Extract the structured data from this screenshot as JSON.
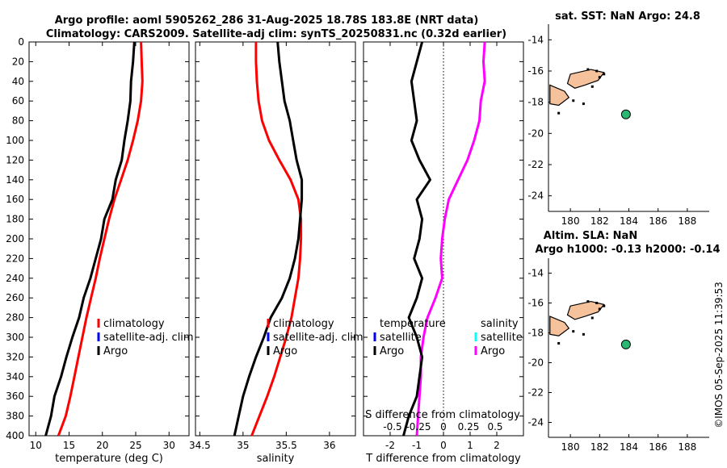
{
  "header": {
    "title_line1": "Argo profile: aoml 5905262_286 31-Aug-2025 18.78S 183.8E (NRT data)",
    "title_line2": "Climatology: CARS2009. Satellite-adj clim: synTS_20250831.nc (0.32d earlier)",
    "sst_title": "sat. SST: NaN Argo: 24.8",
    "sla_title1": "Altim. SLA: NaN",
    "sla_title2": "Argo h1000: -0.13 h2000: -0.14",
    "credit": "©IMOS 05-Sep-2025 11:39:53"
  },
  "colors": {
    "climatology": "#ff0000",
    "satellite": "#0000ff",
    "argo": "#000000",
    "sal_satellite": "#00ffff",
    "sal_argo": "#ff00ff",
    "land": "#f6c29c",
    "float": "#2ab673"
  },
  "chart_data": [
    {
      "type": "line",
      "xlabel": "temperature (deg C)",
      "xlim": [
        9,
        33
      ],
      "ylim": [
        0,
        400
      ],
      "y_reversed": true,
      "xticks": [
        10,
        15,
        20,
        25,
        30
      ],
      "yticks": [
        0,
        20,
        40,
        60,
        80,
        100,
        120,
        140,
        160,
        180,
        200,
        220,
        240,
        260,
        280,
        300,
        320,
        340,
        360,
        380,
        400
      ],
      "legend": [
        "climatology",
        "satellite-adj. clim",
        "Argo"
      ],
      "series": [
        {
          "name": "climatology",
          "points": [
            [
              25.8,
              0
            ],
            [
              25.9,
              20
            ],
            [
              26.0,
              40
            ],
            [
              25.8,
              60
            ],
            [
              25.3,
              80
            ],
            [
              24.6,
              100
            ],
            [
              23.8,
              120
            ],
            [
              22.8,
              140
            ],
            [
              21.8,
              160
            ],
            [
              21.0,
              180
            ],
            [
              20.3,
              200
            ],
            [
              19.6,
              220
            ],
            [
              19.0,
              240
            ],
            [
              18.3,
              260
            ],
            [
              17.6,
              280
            ],
            [
              17.0,
              300
            ],
            [
              16.4,
              320
            ],
            [
              15.8,
              340
            ],
            [
              15.2,
              360
            ],
            [
              14.5,
              380
            ],
            [
              13.4,
              400
            ]
          ]
        },
        {
          "name": "Argo",
          "points": [
            [
              24.8,
              0
            ],
            [
              24.6,
              20
            ],
            [
              24.3,
              40
            ],
            [
              24.2,
              60
            ],
            [
              23.8,
              80
            ],
            [
              23.3,
              100
            ],
            [
              22.9,
              120
            ],
            [
              22.0,
              140
            ],
            [
              21.5,
              160
            ],
            [
              20.3,
              180
            ],
            [
              19.8,
              200
            ],
            [
              19.0,
              220
            ],
            [
              18.2,
              240
            ],
            [
              17.2,
              260
            ],
            [
              16.5,
              280
            ],
            [
              15.5,
              300
            ],
            [
              14.6,
              320
            ],
            [
              13.8,
              340
            ],
            [
              12.8,
              360
            ],
            [
              12.3,
              380
            ],
            [
              11.5,
              400
            ]
          ]
        }
      ]
    },
    {
      "type": "line",
      "xlabel": "salinity",
      "xlim": [
        34.45,
        36.3
      ],
      "ylim": [
        0,
        400
      ],
      "y_reversed": true,
      "xticks": [
        34.5,
        35,
        35.5,
        36
      ],
      "legend": [
        "climatology",
        "satellite-adj. clim",
        "Argo"
      ],
      "series": [
        {
          "name": "climatology",
          "points": [
            [
              35.15,
              0
            ],
            [
              35.15,
              20
            ],
            [
              35.16,
              40
            ],
            [
              35.18,
              60
            ],
            [
              35.22,
              80
            ],
            [
              35.3,
              100
            ],
            [
              35.42,
              120
            ],
            [
              35.55,
              140
            ],
            [
              35.64,
              160
            ],
            [
              35.67,
              180
            ],
            [
              35.67,
              200
            ],
            [
              35.66,
              220
            ],
            [
              35.64,
              240
            ],
            [
              35.6,
              260
            ],
            [
              35.56,
              280
            ],
            [
              35.5,
              300
            ],
            [
              35.43,
              320
            ],
            [
              35.36,
              340
            ],
            [
              35.28,
              360
            ],
            [
              35.19,
              380
            ],
            [
              35.1,
              400
            ]
          ]
        },
        {
          "name": "Argo",
          "points": [
            [
              35.4,
              0
            ],
            [
              35.42,
              20
            ],
            [
              35.45,
              40
            ],
            [
              35.48,
              60
            ],
            [
              35.54,
              80
            ],
            [
              35.58,
              100
            ],
            [
              35.62,
              120
            ],
            [
              35.68,
              140
            ],
            [
              35.68,
              160
            ],
            [
              35.66,
              180
            ],
            [
              35.64,
              200
            ],
            [
              35.6,
              220
            ],
            [
              35.54,
              240
            ],
            [
              35.45,
              260
            ],
            [
              35.32,
              280
            ],
            [
              35.24,
              300
            ],
            [
              35.15,
              320
            ],
            [
              35.07,
              340
            ],
            [
              35.0,
              360
            ],
            [
              34.95,
              380
            ],
            [
              34.9,
              400
            ]
          ]
        }
      ]
    },
    {
      "type": "line",
      "xlabel": "T difference from climatology",
      "top_label": "S difference from climatology",
      "xlim": [
        -3,
        3
      ],
      "ylim": [
        0,
        400
      ],
      "y_reversed": true,
      "xticks": [
        -2,
        -1,
        0,
        1,
        2
      ],
      "top_ticks": [
        "-0.5",
        "-0.25",
        "0",
        "0.25",
        "0.5"
      ],
      "legend": [
        "temperature",
        "satellite",
        "Argo",
        "salinity",
        "satellite",
        "Argo"
      ],
      "series": [
        {
          "name": "temperature Argo",
          "points": [
            [
              -0.8,
              0
            ],
            [
              -1.0,
              20
            ],
            [
              -1.2,
              40
            ],
            [
              -1.1,
              60
            ],
            [
              -1.0,
              80
            ],
            [
              -1.2,
              100
            ],
            [
              -0.9,
              120
            ],
            [
              -0.5,
              140
            ],
            [
              -1.0,
              160
            ],
            [
              -0.8,
              180
            ],
            [
              -0.9,
              200
            ],
            [
              -1.1,
              220
            ],
            [
              -0.8,
              240
            ],
            [
              -1.0,
              260
            ],
            [
              -1.3,
              280
            ],
            [
              -1.0,
              300
            ],
            [
              -0.8,
              320
            ],
            [
              -0.9,
              340
            ],
            [
              -1.0,
              360
            ],
            [
              -1.3,
              380
            ],
            [
              -1.5,
              400
            ]
          ]
        },
        {
          "name": "salinity Argo",
          "points": [
            [
              1.55,
              0
            ],
            [
              1.5,
              20
            ],
            [
              1.55,
              40
            ],
            [
              1.4,
              60
            ],
            [
              1.35,
              80
            ],
            [
              1.15,
              100
            ],
            [
              0.9,
              120
            ],
            [
              0.55,
              140
            ],
            [
              0.2,
              160
            ],
            [
              0.05,
              180
            ],
            [
              -0.05,
              200
            ],
            [
              -0.1,
              220
            ],
            [
              -0.05,
              240
            ],
            [
              -0.3,
              260
            ],
            [
              -0.6,
              280
            ],
            [
              -0.75,
              300
            ],
            [
              -0.85,
              320
            ],
            [
              -0.85,
              340
            ],
            [
              -0.9,
              360
            ],
            [
              -0.95,
              380
            ],
            [
              -1.0,
              400
            ]
          ]
        }
      ]
    },
    {
      "type": "scatter",
      "title": "sat. SST: NaN Argo: 24.8",
      "xlim": [
        178.5,
        189.5
      ],
      "ylim": [
        -25,
        -13
      ],
      "xticks": [
        180,
        182,
        184,
        186,
        188
      ],
      "yticks": [
        -14,
        -16,
        -18,
        -20,
        -22,
        -24
      ],
      "points": [
        {
          "lon": 183.8,
          "lat": -18.78,
          "label": "Argo float"
        }
      ]
    },
    {
      "type": "scatter",
      "title": "Altim. SLA: NaN",
      "subtitle": "Argo h1000: -0.13 h2000: -0.14",
      "xlim": [
        178.5,
        189.5
      ],
      "ylim": [
        -25,
        -13
      ],
      "xticks": [
        180,
        182,
        184,
        186,
        188
      ],
      "yticks": [
        -14,
        -16,
        -18,
        -20,
        -22,
        -24
      ],
      "points": [
        {
          "lon": 183.8,
          "lat": -18.78,
          "label": "Argo float"
        }
      ]
    }
  ]
}
